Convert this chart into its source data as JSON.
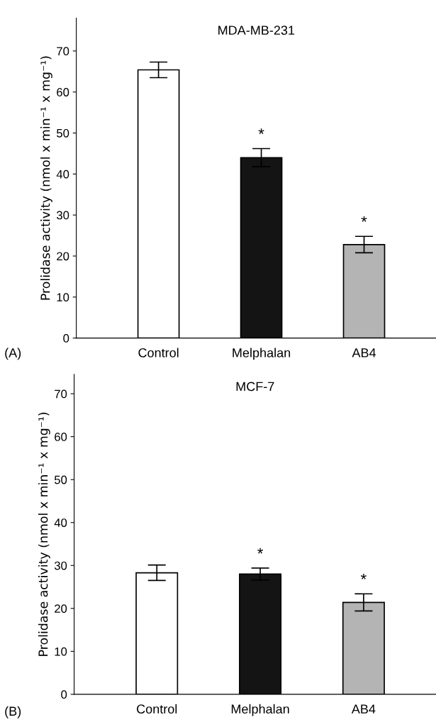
{
  "chart_data": [
    {
      "type": "bar",
      "title": "MDA-MB-231",
      "ylabel": "Prolidase activity (nmol x min⁻¹ x mg⁻¹)",
      "categories": [
        "Control",
        "Melphalan",
        "AB4"
      ],
      "values": [
        65.4,
        44.0,
        22.8
      ],
      "errors": [
        1.9,
        2.2,
        2.0
      ],
      "colors": [
        "#ffffff",
        "#141414",
        "#b4b4b4"
      ],
      "ylim": [
        0,
        78
      ],
      "yticks": [
        0,
        10,
        20,
        30,
        40,
        50,
        60,
        70
      ],
      "grid": false,
      "annotations": [
        "(A)",
        "*",
        "*"
      ]
    },
    {
      "type": "bar",
      "title": "MCF-7",
      "ylabel": "Prolidase activity (nmol x min⁻¹ x mg⁻¹)",
      "categories": [
        "Control",
        "Melphalan",
        "AB4"
      ],
      "values": [
        28.3,
        28.0,
        21.4
      ],
      "errors": [
        1.8,
        1.4,
        2.0
      ],
      "colors": [
        "#ffffff",
        "#141414",
        "#b4b4b4"
      ],
      "ylim": [
        0,
        74.5
      ],
      "yticks": [
        0,
        10,
        20,
        30,
        40,
        50,
        60,
        70
      ],
      "grid": false,
      "annotations": [
        "(B)",
        "*",
        "*"
      ]
    }
  ]
}
